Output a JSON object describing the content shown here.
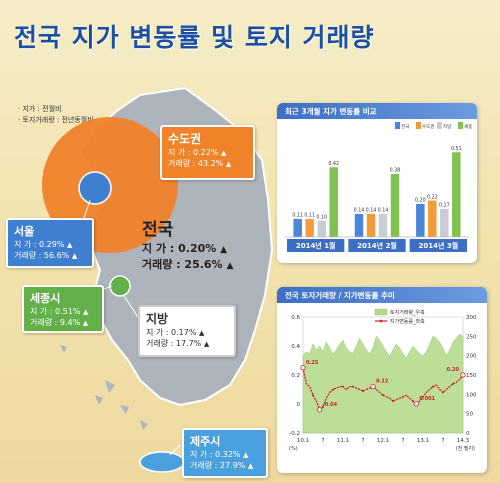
{
  "title": "전국 지가 변동률 및 토지 거래량",
  "notes": [
    "· 지가 : 전월비",
    "· 토지거래량 : 전년동월비"
  ],
  "regions": [
    {
      "name": "수도권",
      "price": "지 가 : 0.22%",
      "volume": "거래량 : 43.2%"
    },
    {
      "name": "서울",
      "price": "지 가 : 0.29%",
      "volume": "거래량 : 56.6%"
    },
    {
      "name": "전국",
      "price": "지 가 : 0.20%",
      "volume": "거래량 : 25.6%"
    },
    {
      "name": "세종시",
      "price": "지 가 : 0.51%",
      "volume": "거래량 : 9.4%"
    },
    {
      "name": "지방",
      "price": "지 가 : 0.17%",
      "volume": "거래량 : 17.7%"
    },
    {
      "name": "제주시",
      "price": "지 가 : 0.32%",
      "volume": "거래량 : 27.9%"
    }
  ],
  "colors": {
    "capital": "#f0822a",
    "seoul": "#3f7fd0",
    "sejong": "#63b04a",
    "jeju": "#4aa0dc",
    "local": "#ffffff",
    "map": "#aeb4bc"
  },
  "chart_data": [
    {
      "type": "bar",
      "title": "최근 3개월 지가 변동률 비교",
      "legend": [
        "전국",
        "수도권",
        "지방",
        "세종"
      ],
      "categories": [
        "2014년 1월",
        "2014년 2월",
        "2014년 3월"
      ],
      "series": [
        {
          "name": "전국",
          "values": [
            0.11,
            0.14,
            0.2
          ]
        },
        {
          "name": "수도권",
          "values": [
            0.11,
            0.14,
            0.22
          ]
        },
        {
          "name": "지방",
          "values": [
            0.1,
            0.14,
            0.17
          ]
        },
        {
          "name": "세종",
          "values": [
            0.42,
            0.38,
            0.51
          ]
        }
      ],
      "ylim": [
        0,
        0.6
      ]
    },
    {
      "type": "line",
      "title": "전국 토지거래량 / 지가변동률 추이",
      "legend": [
        "토지거래량_우축",
        "지가변동률_좌축"
      ],
      "x_ticks": [
        "10.1",
        "7",
        "11.1",
        "7",
        "12.1",
        "7",
        "13.1",
        "7",
        "14.3"
      ],
      "x_unit": "(%)",
      "y2_unit": "(천 필지)",
      "y_left": {
        "ticks": [
          "0.6",
          "0.4",
          "0.2",
          "0",
          "-0.2"
        ],
        "range": [
          -0.2,
          0.6
        ]
      },
      "y_right": {
        "ticks": [
          "300",
          "250",
          "200",
          "150",
          "100",
          "50",
          "0"
        ],
        "range": [
          0,
          300
        ]
      },
      "annotations": [
        "0.25",
        "-0.04",
        "0.12",
        "0.001",
        "0.20"
      ],
      "series": [
        {
          "name": "토지거래량_우축",
          "values": [
            200,
            210,
            205,
            230,
            215,
            225,
            210,
            235,
            220,
            205,
            215,
            230,
            240,
            220,
            210,
            205,
            225,
            245,
            230,
            215,
            205,
            220,
            250,
            240,
            225,
            210,
            200,
            215,
            230,
            220,
            205,
            195,
            210,
            225,
            215,
            205,
            200,
            210,
            230,
            250,
            245,
            235,
            220,
            200,
            215,
            235,
            245,
            255,
            250
          ]
        },
        {
          "name": "지가변동률_좌축",
          "values": [
            0.25,
            0.14,
            0.12,
            0.06,
            0.02,
            -0.04,
            -0.02,
            0.04,
            0.08,
            0.1,
            0.11,
            0.12,
            0.12,
            0.1,
            0.12,
            0.12,
            0.11,
            0.1,
            0.09,
            0.1,
            0.11,
            0.12,
            0.1,
            0.08,
            0.06,
            0.05,
            0.04,
            0.02,
            0.03,
            0.04,
            0.05,
            0.06,
            0.04,
            0.02,
            0.001,
            0.02,
            0.05,
            0.08,
            0.1,
            0.12,
            0.13,
            0.1,
            0.08,
            0.1,
            0.12,
            0.14,
            0.15,
            0.17,
            0.2
          ]
        }
      ]
    }
  ]
}
